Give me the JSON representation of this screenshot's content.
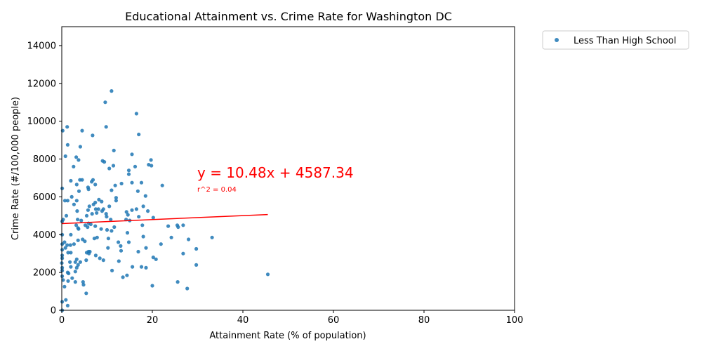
{
  "chart_data": {
    "type": "scatter",
    "title": "Educational Attainment vs. Crime Rate for Washington DC",
    "xlabel": "Attainment Rate (% of population)",
    "ylabel": "Crime Rate (#/100,000 people)",
    "xlim": [
      0,
      100
    ],
    "ylim": [
      0,
      15000
    ],
    "x_ticks": [
      0,
      20,
      40,
      60,
      80,
      100
    ],
    "y_ticks": [
      0,
      2000,
      4000,
      6000,
      8000,
      10000,
      12000,
      14000
    ],
    "grid": false,
    "legend_position": "outside-top-right",
    "point_color": "#1f77b4",
    "fit_color": "#ff0000",
    "series": [
      {
        "name": "Less Than High School",
        "points": [
          [
            0.2,
            9500
          ],
          [
            1.2,
            9700
          ],
          [
            4.5,
            9500
          ],
          [
            6.8,
            9250
          ],
          [
            9.6,
            11000
          ],
          [
            11.0,
            11600
          ],
          [
            16.5,
            10400
          ],
          [
            9.8,
            9700
          ],
          [
            17.0,
            9300
          ],
          [
            1.3,
            8750
          ],
          [
            4.1,
            8650
          ],
          [
            11.5,
            8450
          ],
          [
            0.8,
            8150
          ],
          [
            3.2,
            8100
          ],
          [
            3.7,
            7950
          ],
          [
            15.5,
            8250
          ],
          [
            9.0,
            7900
          ],
          [
            9.4,
            7850
          ],
          [
            19.7,
            7950
          ],
          [
            19.2,
            7700
          ],
          [
            19.8,
            7650
          ],
          [
            16.2,
            7600
          ],
          [
            10.5,
            7500
          ],
          [
            11.4,
            7650
          ],
          [
            14.8,
            7400
          ],
          [
            14.8,
            7200
          ],
          [
            2.6,
            7600
          ],
          [
            2.0,
            6850
          ],
          [
            4.0,
            6900
          ],
          [
            4.5,
            6900
          ],
          [
            6.6,
            6800
          ],
          [
            6.9,
            6900
          ],
          [
            13.2,
            6700
          ],
          [
            15.5,
            6750
          ],
          [
            17.6,
            6750
          ],
          [
            22.2,
            6600
          ],
          [
            0.1,
            6450
          ],
          [
            3.3,
            6650
          ],
          [
            5.8,
            6500
          ],
          [
            5.9,
            6400
          ],
          [
            7.4,
            6650
          ],
          [
            11.8,
            6600
          ],
          [
            11.0,
            6350
          ],
          [
            16.8,
            6300
          ],
          [
            3.8,
            6300
          ],
          [
            18.5,
            6050
          ],
          [
            2.2,
            6000
          ],
          [
            1.3,
            5800
          ],
          [
            0.7,
            5800
          ],
          [
            3.3,
            5800
          ],
          [
            7.0,
            5600
          ],
          [
            7.4,
            5700
          ],
          [
            8.2,
            5850
          ],
          [
            8.8,
            5750
          ],
          [
            12.0,
            5800
          ],
          [
            12.0,
            5950
          ],
          [
            2.7,
            5600
          ],
          [
            6.1,
            5500
          ],
          [
            10.5,
            5500
          ],
          [
            18.0,
            5500
          ],
          [
            15.5,
            5300
          ],
          [
            16.5,
            5350
          ],
          [
            19.0,
            5250
          ],
          [
            9.2,
            5350
          ],
          [
            8.9,
            5250
          ],
          [
            7.5,
            5350
          ],
          [
            8.1,
            5350
          ],
          [
            3.4,
            5250
          ],
          [
            5.8,
            5300
          ],
          [
            6.7,
            5100
          ],
          [
            7.7,
            5150
          ],
          [
            9.8,
            5100
          ],
          [
            14.3,
            5200
          ],
          [
            14.6,
            5050
          ],
          [
            1.0,
            5000
          ],
          [
            5.5,
            5000
          ],
          [
            9.9,
            4950
          ],
          [
            20.2,
            4900
          ],
          [
            17.0,
            4950
          ],
          [
            3.5,
            4800
          ],
          [
            4.3,
            4750
          ],
          [
            10.8,
            4800
          ],
          [
            14.2,
            4800
          ],
          [
            15.0,
            4750
          ],
          [
            0.1,
            4700
          ],
          [
            0.3,
            4800
          ],
          [
            5.9,
            4600
          ],
          [
            5.2,
            4500
          ],
          [
            6.4,
            4550
          ],
          [
            17.8,
            4500
          ],
          [
            11.6,
            4400
          ],
          [
            7.4,
            4450
          ],
          [
            3.2,
            4500
          ],
          [
            3.6,
            4350
          ],
          [
            3.7,
            4300
          ],
          [
            5.7,
            4400
          ],
          [
            8.7,
            4300
          ],
          [
            10.0,
            4250
          ],
          [
            11.0,
            4200
          ],
          [
            23.5,
            4450
          ],
          [
            25.5,
            4500
          ],
          [
            25.7,
            4400
          ],
          [
            26.8,
            4500
          ],
          [
            14.5,
            4100
          ],
          [
            0.1,
            4000
          ],
          [
            2.0,
            4000
          ],
          [
            7.8,
            3850
          ],
          [
            7.2,
            3800
          ],
          [
            10.3,
            3800
          ],
          [
            18.0,
            3900
          ],
          [
            24.2,
            3850
          ],
          [
            28.0,
            3750
          ],
          [
            33.2,
            3850
          ],
          [
            3.6,
            3700
          ],
          [
            5.1,
            3650
          ],
          [
            4.6,
            3750
          ],
          [
            0.6,
            3600
          ],
          [
            0.1,
            3500
          ],
          [
            1.2,
            3450
          ],
          [
            1.9,
            3450
          ],
          [
            2.7,
            3500
          ],
          [
            12.5,
            3600
          ],
          [
            14.8,
            3600
          ],
          [
            21.9,
            3500
          ],
          [
            13.0,
            3400
          ],
          [
            0.8,
            3300
          ],
          [
            0.1,
            3200
          ],
          [
            10.2,
            3300
          ],
          [
            18.6,
            3300
          ],
          [
            29.7,
            3250
          ],
          [
            5.9,
            3100
          ],
          [
            1.4,
            3050
          ],
          [
            2.0,
            3050
          ],
          [
            5.5,
            3050
          ],
          [
            6.0,
            3000
          ],
          [
            13.1,
            3150
          ],
          [
            16.9,
            3100
          ],
          [
            26.8,
            3000
          ],
          [
            0.1,
            2900
          ],
          [
            6.2,
            3100
          ],
          [
            7.5,
            2900
          ],
          [
            20.2,
            2800
          ],
          [
            20.8,
            2700
          ],
          [
            0.1,
            2750
          ],
          [
            3.3,
            2700
          ],
          [
            8.4,
            2750
          ],
          [
            9.2,
            2650
          ],
          [
            12.6,
            2600
          ],
          [
            3.0,
            2550
          ],
          [
            4.1,
            2550
          ],
          [
            1.8,
            2550
          ],
          [
            0.0,
            2500
          ],
          [
            5.4,
            2650
          ],
          [
            3.6,
            2400
          ],
          [
            2.0,
            2300
          ],
          [
            0.1,
            2250
          ],
          [
            15.6,
            2300
          ],
          [
            17.6,
            2300
          ],
          [
            18.6,
            2250
          ],
          [
            29.7,
            2400
          ],
          [
            3.3,
            2250
          ],
          [
            0.1,
            2100
          ],
          [
            11.1,
            2100
          ],
          [
            3.0,
            2050
          ],
          [
            1.5,
            1950
          ],
          [
            1.3,
            2000
          ],
          [
            45.5,
            1900
          ],
          [
            0.1,
            1800
          ],
          [
            13.5,
            1750
          ],
          [
            14.4,
            1850
          ],
          [
            2.3,
            1700
          ],
          [
            0.3,
            1600
          ],
          [
            1.4,
            1550
          ],
          [
            3.0,
            1500
          ],
          [
            4.7,
            1500
          ],
          [
            25.6,
            1500
          ],
          [
            0.6,
            1250
          ],
          [
            4.8,
            1350
          ],
          [
            20.0,
            1300
          ],
          [
            27.7,
            1150
          ],
          [
            5.4,
            900
          ],
          [
            0.9,
            550
          ],
          [
            1.3,
            250
          ],
          [
            0.1,
            450
          ],
          [
            0.1,
            0
          ]
        ]
      }
    ],
    "fit": {
      "slope": 10.48,
      "intercept": 4587.34,
      "x_range": [
        0,
        45.5
      ],
      "equation": "y = 10.48x + 4587.34",
      "r2": "r^2 = 0.04"
    }
  }
}
